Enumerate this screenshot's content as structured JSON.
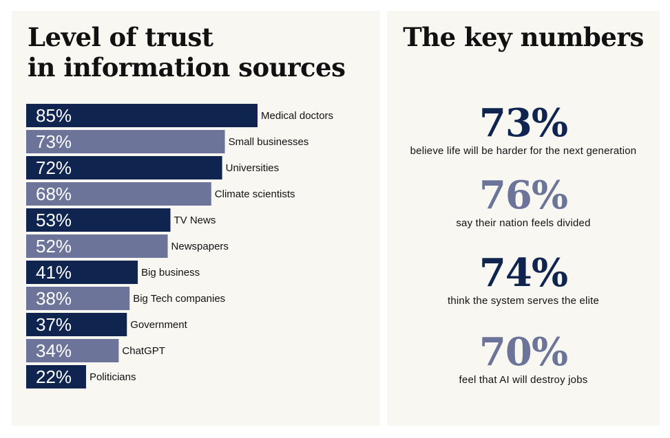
{
  "left": {
    "title": "Level of trust\nin information sources"
  },
  "right": {
    "title": "The key numbers",
    "stats": [
      {
        "number": "73%",
        "caption": "believe life will be harder for the next generation",
        "color": "#0f2550"
      },
      {
        "number": "76%",
        "caption": "say their nation feels divided",
        "color": "#6c7599"
      },
      {
        "number": "74%",
        "caption": "think the system serves the elite",
        "color": "#0f2550"
      },
      {
        "number": "70%",
        "caption": "feel that AI will destroy jobs",
        "color": "#6c7599"
      }
    ]
  },
  "colors": {
    "dark": "#0f2550",
    "light": "#6c7599",
    "panel_bg": "#f8f7f2"
  },
  "chart_data": {
    "type": "bar",
    "orientation": "horizontal",
    "title": "Level of trust\nin information sources",
    "categories": [
      "Medical doctors",
      "Small businesses",
      "Universities",
      "Climate scientists",
      "TV News",
      "Newspapers",
      "Big business",
      "Big Tech companies",
      "Government",
      "ChatGPT",
      "Politicians"
    ],
    "values": [
      85,
      73,
      72,
      68,
      53,
      52,
      41,
      38,
      37,
      34,
      22
    ],
    "value_labels": [
      "85%",
      "73%",
      "72%",
      "68%",
      "53%",
      "52%",
      "41%",
      "38%",
      "37%",
      "34%",
      "22%"
    ],
    "bar_colors": [
      "#0f2550",
      "#6c7599",
      "#0f2550",
      "#6c7599",
      "#0f2550",
      "#6c7599",
      "#0f2550",
      "#6c7599",
      "#0f2550",
      "#6c7599",
      "#0f2550"
    ],
    "xlim": [
      0,
      100
    ],
    "grid": false,
    "xlabel": "",
    "ylabel": ""
  }
}
